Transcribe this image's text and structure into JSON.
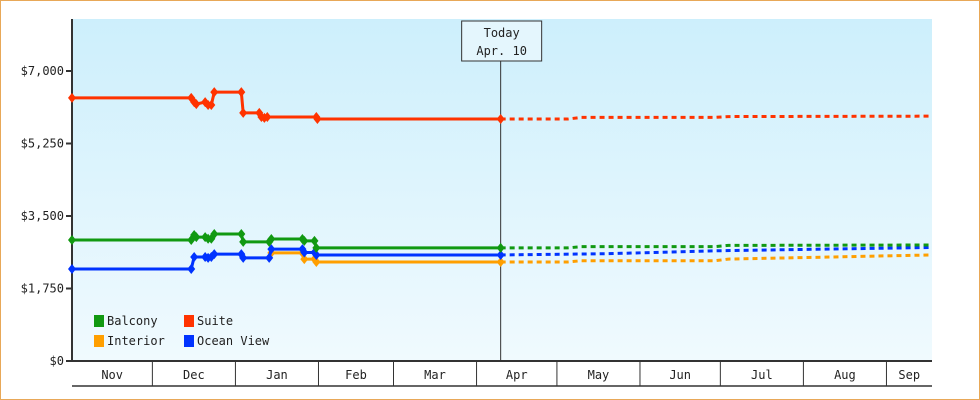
{
  "chart_data": {
    "type": "line",
    "title": "",
    "x_unit": "days since Nov 1",
    "xlim": [
      0,
      321
    ],
    "ylim": [
      0,
      7000
    ],
    "y_ticks": [
      {
        "value": 0,
        "label": "$0"
      },
      {
        "value": 1750,
        "label": "$1,750"
      },
      {
        "value": 3500,
        "label": "$3,500"
      },
      {
        "value": 5250,
        "label": "$5,250"
      },
      {
        "value": 7000,
        "label": "$7,000"
      }
    ],
    "months": [
      {
        "label": "Nov",
        "start": 0
      },
      {
        "label": "Dec",
        "start": 30
      },
      {
        "label": "Jan",
        "start": 61
      },
      {
        "label": "Feb",
        "start": 92
      },
      {
        "label": "Mar",
        "start": 120
      },
      {
        "label": "Apr",
        "start": 151
      },
      {
        "label": "May",
        "start": 181
      },
      {
        "label": "Jun",
        "start": 212
      },
      {
        "label": "Jul",
        "start": 242
      },
      {
        "label": "Aug",
        "start": 273
      },
      {
        "label": "Sep",
        "start": 304
      }
    ],
    "today": {
      "label": "Today",
      "date": "Apr. 10",
      "day": 160
    },
    "legend_position": "bottom-left",
    "series": [
      {
        "name": "Balcony",
        "color": "#119911",
        "points": [
          [
            0,
            2920
          ],
          [
            44.5,
            2920
          ],
          [
            45.6,
            3040
          ],
          [
            46.4,
            2990
          ],
          [
            49.7,
            2990
          ],
          [
            50.8,
            2950
          ],
          [
            52,
            2950
          ],
          [
            53.1,
            3065
          ],
          [
            63.2,
            3065
          ],
          [
            63.9,
            2875
          ],
          [
            73.6,
            2875
          ],
          [
            74.4,
            2945
          ],
          [
            86,
            2945
          ],
          [
            86.7,
            2900
          ],
          [
            90.5,
            2900
          ],
          [
            91.2,
            2730
          ],
          [
            160,
            2730
          ]
        ],
        "forecast": [
          [
            160,
            2730
          ],
          [
            185,
            2730
          ],
          [
            190,
            2760
          ],
          [
            240,
            2760
          ],
          [
            245,
            2790
          ],
          [
            321,
            2800
          ]
        ]
      },
      {
        "name": "Suite",
        "color": "#ff3300",
        "points": [
          [
            0,
            6350
          ],
          [
            44.5,
            6350
          ],
          [
            45.6,
            6250
          ],
          [
            46.4,
            6200
          ],
          [
            49.7,
            6250
          ],
          [
            50.8,
            6180
          ],
          [
            52,
            6180
          ],
          [
            53.1,
            6490
          ],
          [
            63.2,
            6490
          ],
          [
            63.9,
            5990
          ],
          [
            69.9,
            5990
          ],
          [
            70.7,
            5890
          ],
          [
            71.8,
            5870
          ],
          [
            72.9,
            5890
          ],
          [
            91.2,
            5890
          ],
          [
            91.6,
            5840
          ],
          [
            160,
            5840
          ]
        ],
        "forecast": [
          [
            160,
            5840
          ],
          [
            185,
            5840
          ],
          [
            190,
            5880
          ],
          [
            240,
            5880
          ],
          [
            245,
            5900
          ],
          [
            321,
            5910
          ]
        ]
      },
      {
        "name": "Interior",
        "color": "#ff9f00",
        "points": [
          [
            74.4,
            2610
          ],
          [
            86,
            2610
          ],
          [
            86.7,
            2460
          ],
          [
            90.5,
            2460
          ],
          [
            91.2,
            2390
          ],
          [
            160,
            2390
          ]
        ],
        "forecast": [
          [
            160,
            2390
          ],
          [
            185,
            2390
          ],
          [
            190,
            2420
          ],
          [
            240,
            2420
          ],
          [
            245,
            2460
          ],
          [
            321,
            2560
          ]
        ]
      },
      {
        "name": "Ocean View",
        "color": "#0033ff",
        "points": [
          [
            0,
            2220
          ],
          [
            44.5,
            2220
          ],
          [
            45.6,
            2510
          ],
          [
            49.7,
            2510
          ],
          [
            50.8,
            2490
          ],
          [
            52,
            2510
          ],
          [
            53.1,
            2580
          ],
          [
            63.2,
            2580
          ],
          [
            63.9,
            2490
          ],
          [
            73.6,
            2490
          ],
          [
            74.4,
            2700
          ],
          [
            86,
            2700
          ],
          [
            86.7,
            2620
          ],
          [
            90.5,
            2620
          ],
          [
            91.2,
            2560
          ],
          [
            160,
            2560
          ]
        ],
        "forecast": [
          [
            160,
            2560
          ],
          [
            200,
            2590
          ],
          [
            240,
            2660
          ],
          [
            280,
            2700
          ],
          [
            321,
            2740
          ]
        ]
      }
    ]
  }
}
